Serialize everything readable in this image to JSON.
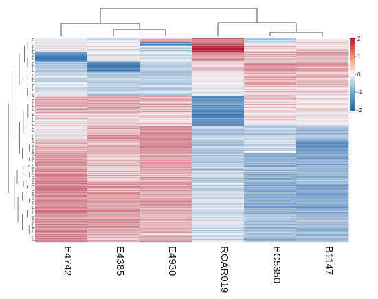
{
  "chart_data": {
    "type": "heatmap",
    "title": "",
    "xlabel": "",
    "ylabel": "",
    "columns": [
      "E4742",
      "E4385",
      "E4930",
      "ROAR019",
      "EC5350",
      "B1147"
    ],
    "column_dendrogram_order": [
      "E4742",
      "E4385",
      "E4930",
      "ROAR019",
      "EC5350",
      "B1147"
    ],
    "row_count": 300,
    "value_range": [
      -2,
      2
    ],
    "color_scale": {
      "low": "#2166ac",
      "mid": "#f7f7f7",
      "high": "#b2182b",
      "ticks": [
        "2",
        "1",
        "0",
        "-1",
        "-2"
      ]
    },
    "row_blocks": [
      {
        "rows": [
          0,
          6
        ],
        "values": [
          -0.1,
          -0.2,
          0.6,
          1.1,
          -0.6,
          0.2
        ]
      },
      {
        "rows": [
          6,
          12
        ],
        "values": [
          0.1,
          -0.1,
          -1.4,
          1.3,
          -0.1,
          0.4
        ]
      },
      {
        "rows": [
          12,
          20
        ],
        "values": [
          0.2,
          0.2,
          -0.4,
          1.9,
          0.4,
          0.5
        ]
      },
      {
        "rows": [
          20,
          35
        ],
        "values": [
          -1.6,
          -0.1,
          -0.3,
          0.9,
          0.6,
          0.6
        ]
      },
      {
        "rows": [
          35,
          50
        ],
        "values": [
          -0.6,
          -1.5,
          -0.5,
          0.4,
          0.8,
          0.9
        ]
      },
      {
        "rows": [
          50,
          70
        ],
        "values": [
          -0.4,
          -0.6,
          -0.6,
          0.1,
          0.6,
          0.5
        ]
      },
      {
        "rows": [
          70,
          85
        ],
        "values": [
          -0.2,
          -0.5,
          -0.4,
          0.0,
          0.4,
          0.3
        ]
      },
      {
        "rows": [
          85,
          110
        ],
        "values": [
          0.7,
          0.7,
          0.6,
          -1.3,
          0.3,
          0.2
        ]
      },
      {
        "rows": [
          110,
          130
        ],
        "values": [
          0.2,
          0.1,
          0.2,
          -1.5,
          0.1,
          0.0
        ]
      },
      {
        "rows": [
          130,
          150
        ],
        "values": [
          0.1,
          0.7,
          0.9,
          -0.6,
          -0.6,
          -0.7
        ]
      },
      {
        "rows": [
          150,
          170
        ],
        "values": [
          0.6,
          0.6,
          0.9,
          -0.6,
          -0.4,
          -1.4
        ]
      },
      {
        "rows": [
          170,
          210
        ],
        "values": [
          0.9,
          0.5,
          0.7,
          -0.5,
          -0.9,
          -0.9
        ]
      },
      {
        "rows": [
          210,
          260
        ],
        "values": [
          1.0,
          0.8,
          0.7,
          -0.4,
          -1.0,
          -1.0
        ]
      },
      {
        "rows": [
          260,
          300
        ],
        "values": [
          0.9,
          0.7,
          0.6,
          -0.3,
          -0.8,
          -0.8
        ]
      }
    ],
    "grid": false,
    "legend": "top-right"
  }
}
